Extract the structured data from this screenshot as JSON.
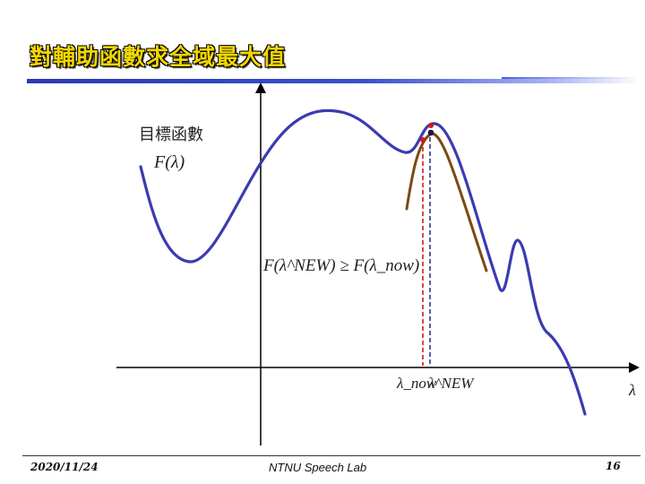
{
  "slide": {
    "title": "對輔助函數求全域最大值",
    "date": "2020/11/24",
    "lab": "NTNU Speech Lab",
    "page": "16"
  },
  "diagram": {
    "objective_label": "目標函數",
    "objective_symbol": "F(λ)",
    "inequality": "F(λ^NEW) ≥ F(λ_now)",
    "lambda_now_label": "λ_now",
    "lambda_new_label": "λ^NEW",
    "axis_label": "λ",
    "colors": {
      "objective_curve": "#3b3bb0",
      "auxiliary_curve": "#7a4a12",
      "lambda_now_line": "#d01818",
      "lambda_new_line": "#2a3a90",
      "axes": "#000000"
    }
  }
}
